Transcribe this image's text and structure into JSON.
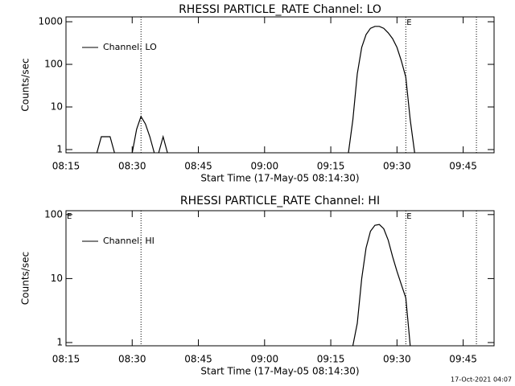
{
  "chart_data": [
    {
      "type": "line",
      "title": "RHESSI PARTICLE_RATE Channel: LO",
      "x_label": "Start Time (17-May-05 08:14:30)",
      "y_label": "Counts/sec",
      "log_y": true,
      "legend": "upper left",
      "xlim": [
        "08:15",
        "09:52"
      ],
      "ylim": [
        0.84,
        1300
      ],
      "xticks": [
        "08:15",
        "08:30",
        "08:45",
        "09:00",
        "09:15",
        "09:30",
        "09:45"
      ],
      "yticks": [
        1,
        10,
        100,
        1000
      ],
      "vlines": [
        "08:32",
        "09:32",
        "09:48"
      ],
      "annotations": [
        {
          "x": "09:32",
          "text": "E"
        }
      ],
      "x": [
        "08:22",
        "08:23",
        "08:25",
        "08:26",
        "08:27",
        "08:30",
        "08:31",
        "08:32",
        "08:33",
        "08:34",
        "08:35",
        "08:35",
        "08:36",
        "08:37",
        "08:38",
        "08:39",
        "09:19",
        "09:20",
        "09:21",
        "09:22",
        "09:23",
        "09:24",
        "09:25",
        "09:26",
        "09:27",
        "09:28",
        "09:29",
        "09:30",
        "09:31",
        "09:32",
        "09:33",
        "09:34"
      ],
      "series": [
        {
          "name": "Channel: LO",
          "color": "#000000",
          "values": [
            0.84,
            2,
            2,
            0.84,
            null,
            0.84,
            3,
            6,
            4,
            2,
            0.84,
            null,
            0.84,
            2,
            0.84,
            null,
            0.84,
            5,
            60,
            250,
            500,
            700,
            780,
            780,
            700,
            550,
            400,
            250,
            120,
            50,
            5,
            0.84
          ]
        }
      ]
    },
    {
      "type": "line",
      "title": "RHESSI PARTICLE_RATE Channel: HI",
      "x_label": "Start Time (17-May-05 08:14:30)",
      "y_label": "Counts/sec",
      "log_y": true,
      "legend": "upper left",
      "xlim": [
        "08:15",
        "09:52"
      ],
      "ylim": [
        0.89,
        115
      ],
      "xticks": [
        "08:15",
        "08:30",
        "08:45",
        "09:00",
        "09:15",
        "09:30",
        "09:45"
      ],
      "yticks": [
        1,
        10,
        100
      ],
      "vlines": [
        "08:32",
        "09:32",
        "09:48"
      ],
      "annotations": [
        {
          "x": "08:15",
          "text": "E"
        },
        {
          "x": "09:32",
          "text": "E"
        }
      ],
      "x": [
        "09:20",
        "09:21",
        "09:22",
        "09:23",
        "09:24",
        "09:25",
        "09:26",
        "09:27",
        "09:28",
        "09:29",
        "09:30",
        "09:31",
        "09:32",
        "09:33"
      ],
      "series": [
        {
          "name": "Channel: HI",
          "color": "#000000",
          "values": [
            0.89,
            2,
            10,
            30,
            55,
            68,
            70,
            60,
            40,
            22,
            13,
            8,
            5,
            0.89
          ]
        }
      ]
    }
  ],
  "footer": "17-Oct-2021 04:07"
}
